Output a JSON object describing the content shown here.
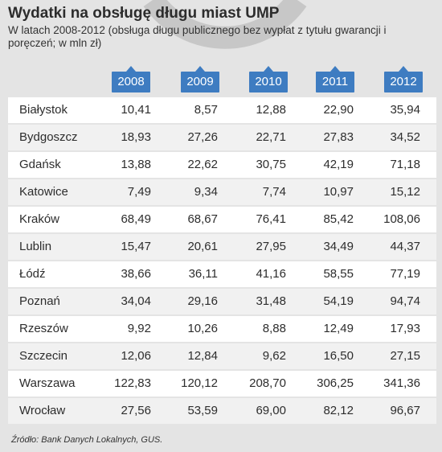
{
  "title": "Wydatki na obsługę długu miast UMP",
  "subtitle": "W latach 2008-2012 (obsługa długu publicznego bez wypłat z tytułu gwarancji i poręczeń; w mln zł)",
  "source": "Źródło: Bank Danych Lokalnych, GUS.",
  "colors": {
    "badge": "#3e7cc1",
    "background": "#e4e4e4",
    "row": "#ffffff",
    "row_alt": "#f1f1f1"
  },
  "chart_data": {
    "type": "table",
    "title": "Wydatki na obsługę długu miast UMP",
    "subtitle": "W latach 2008-2012 (obsługa długu publicznego bez wypłat z tytułu gwarancji i poręczeń; w mln zł)",
    "columns": [
      "2008",
      "2009",
      "2010",
      "2011",
      "2012"
    ],
    "rows": [
      {
        "city": "Białystok",
        "values": [
          "10,41",
          "8,57",
          "12,88",
          "22,90",
          "35,94"
        ]
      },
      {
        "city": "Bydgoszcz",
        "values": [
          "18,93",
          "27,26",
          "22,71",
          "27,83",
          "34,52"
        ]
      },
      {
        "city": "Gdańsk",
        "values": [
          "13,88",
          "22,62",
          "30,75",
          "42,19",
          "71,18"
        ]
      },
      {
        "city": "Katowice",
        "values": [
          "7,49",
          "9,34",
          "7,74",
          "10,97",
          "15,12"
        ]
      },
      {
        "city": "Kraków",
        "values": [
          "68,49",
          "68,67",
          "76,41",
          "85,42",
          "108,06"
        ]
      },
      {
        "city": "Lublin",
        "values": [
          "15,47",
          "20,61",
          "27,95",
          "34,49",
          "44,37"
        ]
      },
      {
        "city": "Łódź",
        "values": [
          "38,66",
          "36,11",
          "41,16",
          "58,55",
          "77,19"
        ]
      },
      {
        "city": "Poznań",
        "values": [
          "34,04",
          "29,16",
          "31,48",
          "54,19",
          "94,74"
        ]
      },
      {
        "city": "Rzeszów",
        "values": [
          "9,92",
          "10,26",
          "8,88",
          "12,49",
          "17,93"
        ]
      },
      {
        "city": "Szczecin",
        "values": [
          "12,06",
          "12,84",
          "9,62",
          "16,50",
          "27,15"
        ]
      },
      {
        "city": "Warszawa",
        "values": [
          "122,83",
          "120,12",
          "208,70",
          "306,25",
          "341,36"
        ]
      },
      {
        "city": "Wrocław",
        "values": [
          "27,56",
          "53,59",
          "69,00",
          "82,12",
          "96,67"
        ]
      }
    ]
  }
}
